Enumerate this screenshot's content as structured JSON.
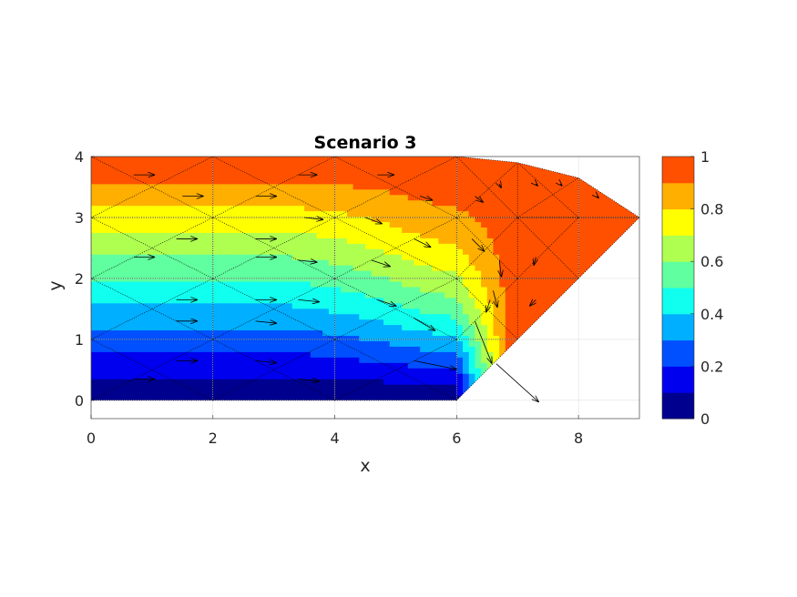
{
  "chart_data": {
    "type": "contour",
    "title": "Scenario 3",
    "xlabel": "x",
    "ylabel": "y",
    "xlim": [
      0,
      9
    ],
    "ylim": [
      -0.3,
      4
    ],
    "xticks": [
      "0",
      "2",
      "4",
      "6",
      "8"
    ],
    "yticks": [
      "0",
      "1",
      "2",
      "3",
      "4"
    ],
    "grid": true,
    "colorbar": {
      "levels": 10,
      "range": [
        0,
        1
      ],
      "ticks": [
        "0",
        "0.2",
        "0.4",
        "0.6",
        "0.8",
        "1"
      ],
      "colors": [
        "#00008f",
        "#0000ef",
        "#0050ff",
        "#00afff",
        "#10ffef",
        "#60ff9f",
        "#afff50",
        "#ffff00",
        "#ffaf00",
        "#ff5000"
      ]
    },
    "domain_outline": [
      [
        0,
        0
      ],
      [
        6,
        0
      ],
      [
        7,
        1
      ],
      [
        8,
        2
      ],
      [
        9,
        3
      ],
      [
        8,
        3.65
      ],
      [
        7,
        3.9
      ],
      [
        6,
        4
      ],
      [
        0,
        4
      ]
    ],
    "mesh_nodes": [
      [
        0,
        0
      ],
      [
        2,
        0
      ],
      [
        4,
        0
      ],
      [
        6,
        0
      ],
      [
        0,
        1
      ],
      [
        2,
        1
      ],
      [
        4,
        1
      ],
      [
        6,
        1
      ],
      [
        7,
        1
      ],
      [
        0,
        2
      ],
      [
        2,
        2
      ],
      [
        4,
        2
      ],
      [
        6,
        2
      ],
      [
        7,
        2
      ],
      [
        8,
        2
      ],
      [
        0,
        3
      ],
      [
        2,
        3
      ],
      [
        4,
        3
      ],
      [
        6,
        3
      ],
      [
        7,
        3
      ],
      [
        8,
        3
      ],
      [
        9,
        3
      ],
      [
        0,
        4
      ],
      [
        2,
        4
      ],
      [
        4,
        4
      ],
      [
        6,
        4
      ],
      [
        7,
        3.9
      ],
      [
        8,
        3.65
      ]
    ],
    "vectors": [
      {
        "x": 0.7,
        "y": 3.7,
        "u": 0.5,
        "v": 0
      },
      {
        "x": 1.5,
        "y": 3.35,
        "u": 0.5,
        "v": 0
      },
      {
        "x": 2.7,
        "y": 3.35,
        "u": 0.5,
        "v": 0
      },
      {
        "x": 3.4,
        "y": 3.7,
        "u": 0.45,
        "v": 0
      },
      {
        "x": 4.7,
        "y": 3.7,
        "u": 0.4,
        "v": 0
      },
      {
        "x": 5.4,
        "y": 3.35,
        "u": 0.3,
        "v": -0.1
      },
      {
        "x": 6.3,
        "y": 3.35,
        "u": 0.2,
        "v": -0.15
      },
      {
        "x": 1.4,
        "y": 2.65,
        "u": 0.5,
        "v": 0
      },
      {
        "x": 2.7,
        "y": 2.65,
        "u": 0.5,
        "v": 0
      },
      {
        "x": 3.5,
        "y": 3.0,
        "u": 0.45,
        "v": -0.05
      },
      {
        "x": 4.5,
        "y": 3.0,
        "u": 0.4,
        "v": -0.15
      },
      {
        "x": 5.3,
        "y": 2.65,
        "u": 0.4,
        "v": -0.2
      },
      {
        "x": 6.25,
        "y": 2.65,
        "u": 0.3,
        "v": -0.3
      },
      {
        "x": 0.7,
        "y": 2.35,
        "u": 0.5,
        "v": 0
      },
      {
        "x": 2.7,
        "y": 2.35,
        "u": 0.5,
        "v": 0
      },
      {
        "x": 3.4,
        "y": 2.3,
        "u": 0.45,
        "v": -0.05
      },
      {
        "x": 4.6,
        "y": 2.3,
        "u": 0.45,
        "v": -0.15
      },
      {
        "x": 1.4,
        "y": 1.65,
        "u": 0.5,
        "v": 0
      },
      {
        "x": 2.7,
        "y": 1.65,
        "u": 0.5,
        "v": 0
      },
      {
        "x": 3.4,
        "y": 1.65,
        "u": 0.5,
        "v": -0.05
      },
      {
        "x": 4.7,
        "y": 1.65,
        "u": 0.45,
        "v": -0.15
      },
      {
        "x": 5.3,
        "y": 1.35,
        "u": 0.5,
        "v": -0.3
      },
      {
        "x": 1.4,
        "y": 1.3,
        "u": 0.5,
        "v": 0
      },
      {
        "x": 2.7,
        "y": 1.3,
        "u": 0.5,
        "v": -0.05
      },
      {
        "x": 1.4,
        "y": 0.65,
        "u": 0.5,
        "v": 0
      },
      {
        "x": 2.7,
        "y": 0.65,
        "u": 0.5,
        "v": -0.05
      },
      {
        "x": 0.7,
        "y": 0.35,
        "u": 0.5,
        "v": 0
      },
      {
        "x": 3.4,
        "y": 0.35,
        "u": 0.5,
        "v": -0.05
      },
      {
        "x": 5.3,
        "y": 0.65,
        "u": 1.0,
        "v": -0.2
      },
      {
        "x": 6.3,
        "y": 1.3,
        "u": 0.4,
        "v": -1.0
      },
      {
        "x": 6.6,
        "y": 1.8,
        "u": 0.1,
        "v": -0.4
      },
      {
        "x": 6.7,
        "y": 2.3,
        "u": 0.05,
        "v": -0.4
      },
      {
        "x": 6.55,
        "y": 1.65,
        "u": -0.1,
        "v": -0.3
      },
      {
        "x": 7.3,
        "y": 2.35,
        "u": -0.05,
        "v": -0.2
      },
      {
        "x": 7.3,
        "y": 1.65,
        "u": -0.15,
        "v": -0.15
      },
      {
        "x": 6.7,
        "y": 3.55,
        "u": 0.05,
        "v": -0.1
      },
      {
        "x": 7.3,
        "y": 3.55,
        "u": 0.05,
        "v": -0.05
      },
      {
        "x": 7.7,
        "y": 3.55,
        "u": 0.05,
        "v": -0.05
      },
      {
        "x": 8.3,
        "y": 3.35,
        "u": 0.05,
        "v": -0.05
      },
      {
        "x": 6.65,
        "y": 0.6,
        "u": 1.0,
        "v": -0.9
      }
    ]
  }
}
